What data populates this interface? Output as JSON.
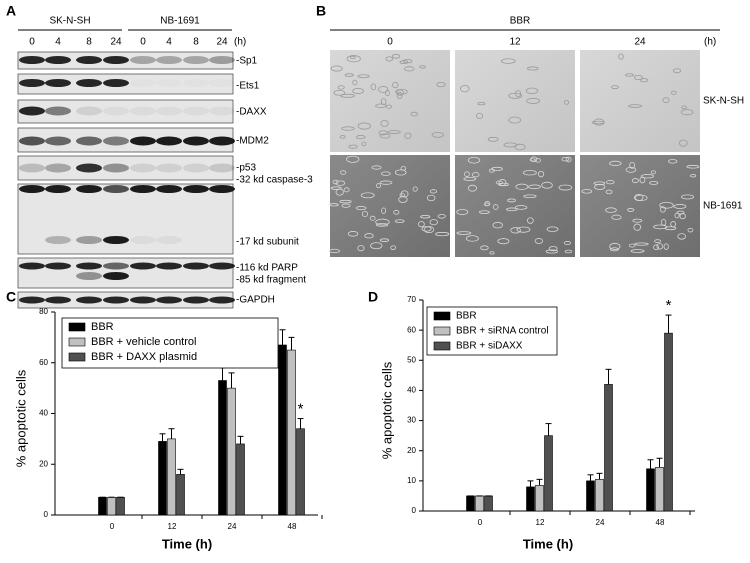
{
  "panel_a": {
    "label": "A",
    "groups": [
      "SK-N-SH",
      "NB-1691"
    ],
    "times": [
      "0",
      "4",
      "8",
      "24",
      "0",
      "4",
      "8",
      "24"
    ],
    "unit": "(h)",
    "bands": [
      "-Sp1",
      "-Ets1",
      "-DAXX",
      "-MDM2",
      "-p53",
      "-32 kd caspase-3",
      "-17 kd subunit",
      "-116 kd PARP",
      "-85 kd fragment",
      "-GAPDH"
    ]
  },
  "panel_b": {
    "label": "B",
    "treatment": "BBR",
    "times": [
      "0",
      "12",
      "24"
    ],
    "unit": "(h)",
    "rows": [
      "SK-N-SH",
      "NB-1691"
    ]
  },
  "chart_data": [
    {
      "type": "bar",
      "label": "C",
      "y_label": "% apoptotic cells",
      "x_label": "Time (h)",
      "categories": [
        "0",
        "12",
        "24",
        "48"
      ],
      "series": [
        {
          "name": "BBR",
          "color": "#000000",
          "values": [
            7,
            29,
            53,
            67
          ],
          "errors": [
            0,
            3,
            5,
            6
          ]
        },
        {
          "name": "BBR + vehicle control",
          "color": "#c0c0c0",
          "values": [
            7,
            30,
            50,
            65
          ],
          "errors": [
            0,
            4,
            6,
            5
          ]
        },
        {
          "name": "BBR + DAXX plasmid",
          "color": "#505050",
          "values": [
            7,
            16,
            28,
            34
          ],
          "errors": [
            0,
            2,
            3,
            4
          ]
        }
      ],
      "ylim": [
        0,
        80
      ],
      "yticks": [
        0,
        20,
        40,
        60,
        80
      ],
      "annotation": "*"
    },
    {
      "type": "bar",
      "label": "D",
      "y_label": "% apoptotic cells",
      "x_label": "Time (h)",
      "categories": [
        "0",
        "12",
        "24",
        "48"
      ],
      "series": [
        {
          "name": "BBR",
          "color": "#000000",
          "values": [
            5,
            8,
            10,
            14
          ],
          "errors": [
            0,
            2,
            2,
            3
          ]
        },
        {
          "name": "BBR + siRNA control",
          "color": "#c0c0c0",
          "values": [
            5,
            8.5,
            10.5,
            14.5
          ],
          "errors": [
            0,
            2,
            2,
            3
          ]
        },
        {
          "name": "BBR + siDAXX",
          "color": "#505050",
          "values": [
            5,
            25,
            42,
            59
          ],
          "errors": [
            0,
            4,
            5,
            6
          ]
        }
      ],
      "ylim": [
        0,
        70
      ],
      "yticks": [
        0,
        10,
        20,
        30,
        40,
        50,
        60,
        70
      ],
      "annotation": "*"
    }
  ]
}
